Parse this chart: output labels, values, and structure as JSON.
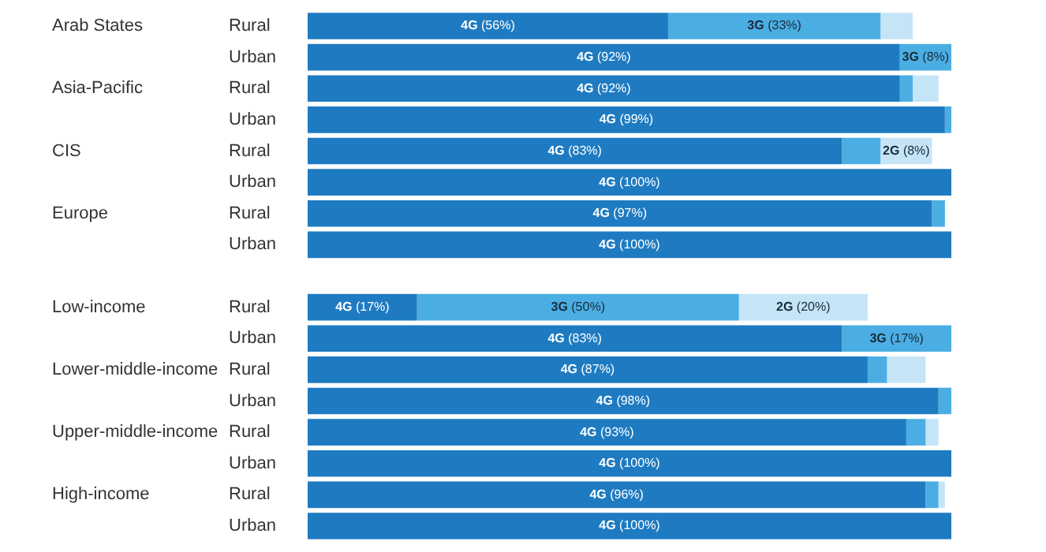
{
  "chart_data": {
    "type": "bar",
    "orientation": "horizontal",
    "stacked": true,
    "grid": false,
    "legend": false,
    "tick_labels": "y",
    "xlim": [
      0,
      100
    ],
    "categories": [
      "Rural",
      "Urban",
      "Rural",
      "Urban",
      "Rural",
      "Urban",
      "Rural",
      "Urban",
      null,
      "Rural",
      "Urban",
      "Rural",
      "Urban",
      "Rural",
      "Urban",
      "Rural",
      "Urban"
    ],
    "annotations": [
      "Arab States",
      "Asia-Pacific",
      "CIS",
      "Europe",
      "Low-income",
      "Lower-middle-income",
      "Upper-middle-income",
      "High-income"
    ],
    "series": [
      {
        "color": "#1f7bc1",
        "values": [
          56,
          92,
          92,
          99,
          83,
          100,
          97,
          100,
          null,
          17,
          83,
          87,
          98,
          93,
          100,
          96,
          100
        ],
        "value_labels": [
          "4G (56%)",
          "4G (92%)",
          "4G (92%)",
          "4G (99%)",
          "4G (83%)",
          "4G (100%)",
          "4G (97%)",
          "4G (100%)",
          null,
          "4G (17%)",
          "4G (83%)",
          "4G (87%)",
          "4G (98%)",
          "4G (93%)",
          "4G (100%)",
          "4G (96%)",
          "4G (100%)"
        ]
      },
      {
        "color": "#4baee3",
        "values": [
          33,
          8,
          2,
          1,
          6,
          null,
          2,
          null,
          null,
          50,
          17,
          3,
          2,
          3,
          null,
          2,
          null
        ],
        "value_labels": [
          "3G (33%)",
          "3G (8%)",
          null,
          null,
          null,
          null,
          null,
          null,
          null,
          "3G (50%)",
          "3G (17%)",
          null,
          null,
          null,
          null,
          null,
          null
        ]
      },
      {
        "color": "#c5e5f7",
        "values": [
          5,
          null,
          4,
          null,
          8,
          null,
          null,
          null,
          null,
          20,
          null,
          6,
          null,
          2,
          null,
          1,
          null
        ],
        "value_labels": [
          null,
          null,
          null,
          null,
          "2G (8%)",
          null,
          null,
          null,
          null,
          "2G (20%)",
          null,
          null,
          null,
          null,
          null,
          null,
          null
        ]
      }
    ]
  }
}
